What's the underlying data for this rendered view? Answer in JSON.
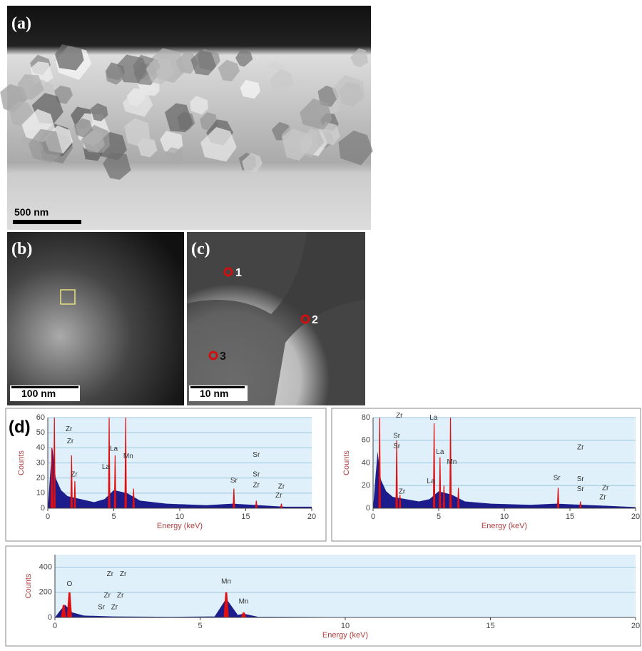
{
  "panels": {
    "a": {
      "label": "(a)",
      "scale": "500 nm"
    },
    "b": {
      "label": "(b)",
      "scale": "100 nm"
    },
    "c": {
      "label": "(c)",
      "scale": "10 nm",
      "points": [
        "1",
        "2",
        "3"
      ]
    },
    "d": {
      "label": "(d)"
    }
  },
  "chart_data": [
    {
      "type": "spectrum",
      "xlabel": "Energy (keV)",
      "ylabel": "Counts",
      "xlim": [
        0,
        20
      ],
      "xticks": [
        0,
        5,
        10,
        15,
        20
      ],
      "ylim": [
        0,
        60
      ],
      "yticks": [
        0,
        10,
        20,
        30,
        40,
        50,
        60
      ],
      "grid": true,
      "background": {
        "color": "#1c1c8c",
        "x": [
          0,
          0.2,
          0.35,
          0.6,
          1,
          1.5,
          2.5,
          3.5,
          4.3,
          5,
          6,
          7,
          9,
          12,
          14,
          16,
          18,
          20
        ],
        "values": [
          0,
          25,
          40,
          20,
          12,
          8,
          6,
          4,
          6,
          12,
          10,
          5,
          3,
          2,
          3,
          2,
          1,
          1
        ]
      },
      "peaks": {
        "color": "#e01010",
        "x": [
          0.3,
          0.5,
          1.8,
          2.05,
          4.65,
          5.1,
          5.9,
          6.5,
          14.1,
          15.8,
          17.7
        ],
        "values": [
          40,
          60,
          35,
          18,
          60,
          35,
          60,
          13,
          13,
          5,
          3
        ]
      },
      "annotations": [
        {
          "text": "Zr",
          "x": 1.6,
          "y": 51
        },
        {
          "text": "Zr",
          "x": 1.7,
          "y": 43
        },
        {
          "text": "Zr",
          "x": 2.0,
          "y": 21
        },
        {
          "text": "La",
          "x": 4.4,
          "y": 26
        },
        {
          "text": "La",
          "x": 5.0,
          "y": 38
        },
        {
          "text": "Mn",
          "x": 6.1,
          "y": 33
        },
        {
          "text": "Sr",
          "x": 14.1,
          "y": 17
        },
        {
          "text": "Sr",
          "x": 15.8,
          "y": 34
        },
        {
          "text": "Sr",
          "x": 15.8,
          "y": 21
        },
        {
          "text": "Zr",
          "x": 15.8,
          "y": 14
        },
        {
          "text": "Zr",
          "x": 17.7,
          "y": 13
        },
        {
          "text": "Zr",
          "x": 17.5,
          "y": 7
        }
      ]
    },
    {
      "type": "spectrum",
      "xlabel": "Energy (keV)",
      "ylabel": "Counts",
      "xlim": [
        0,
        20
      ],
      "xticks": [
        0,
        5,
        10,
        15,
        20
      ],
      "ylim": [
        0,
        80
      ],
      "yticks": [
        0,
        20,
        40,
        60,
        80
      ],
      "grid": true,
      "background": {
        "color": "#1c1c8c",
        "x": [
          0,
          0.2,
          0.35,
          0.6,
          1,
          1.5,
          2.5,
          3.5,
          4.3,
          5,
          6,
          7,
          9,
          12,
          14,
          16,
          18,
          20
        ],
        "values": [
          0,
          30,
          50,
          25,
          15,
          10,
          8,
          6,
          8,
          15,
          12,
          6,
          4,
          3,
          4,
          3,
          2,
          1
        ]
      },
      "peaks": {
        "color": "#e01010",
        "x": [
          0.5,
          1.8,
          2.05,
          4.65,
          5.1,
          5.4,
          5.9,
          6.5,
          14.1,
          15.8
        ],
        "values": [
          80,
          60,
          12,
          75,
          45,
          20,
          80,
          18,
          18,
          6
        ]
      },
      "annotations": [
        {
          "text": "Zr",
          "x": 2.0,
          "y": 80
        },
        {
          "text": "Sr",
          "x": 1.8,
          "y": 62
        },
        {
          "text": "Sr",
          "x": 1.8,
          "y": 53
        },
        {
          "text": "Zr",
          "x": 2.2,
          "y": 13
        },
        {
          "text": "La",
          "x": 4.6,
          "y": 78
        },
        {
          "text": "La",
          "x": 5.1,
          "y": 48
        },
        {
          "text": "La",
          "x": 4.4,
          "y": 22
        },
        {
          "text": "Mn",
          "x": 6.0,
          "y": 39
        },
        {
          "text": "Sr",
          "x": 14.0,
          "y": 25
        },
        {
          "text": "Zr",
          "x": 15.8,
          "y": 52
        },
        {
          "text": "Sr",
          "x": 15.8,
          "y": 24
        },
        {
          "text": "Sr",
          "x": 15.8,
          "y": 15
        },
        {
          "text": "Zr",
          "x": 17.7,
          "y": 16
        },
        {
          "text": "Zr",
          "x": 17.5,
          "y": 8
        }
      ]
    },
    {
      "type": "spectrum",
      "xlabel": "Energy (keV)",
      "ylabel": "Counts",
      "xlim": [
        0,
        20
      ],
      "xticks": [
        0,
        5,
        10,
        15,
        20
      ],
      "ylim": [
        0,
        500
      ],
      "yticks": [
        0,
        200,
        400
      ],
      "grid": true,
      "background": {
        "color": "#1c1c8c",
        "x": [
          0,
          0.2,
          0.35,
          0.6,
          1,
          2,
          4,
          5.5,
          5.9,
          6.3,
          6.5,
          7,
          10,
          20
        ],
        "values": [
          0,
          60,
          100,
          40,
          15,
          8,
          5,
          8,
          150,
          20,
          30,
          5,
          2,
          1
        ]
      },
      "peaks": {
        "color": "#e01010",
        "x": [
          0.3,
          0.5,
          5.9,
          6.5
        ],
        "values": [
          100,
          200,
          200,
          40
        ]
      },
      "annotations": [
        {
          "text": "O",
          "x": 0.5,
          "y": 250
        },
        {
          "text": "Zr",
          "x": 1.9,
          "y": 330
        },
        {
          "text": "Zr",
          "x": 2.35,
          "y": 330
        },
        {
          "text": "Zr",
          "x": 1.8,
          "y": 160
        },
        {
          "text": "Zr",
          "x": 2.25,
          "y": 160
        },
        {
          "text": "Sr",
          "x": 1.6,
          "y": 65
        },
        {
          "text": "Zr",
          "x": 2.05,
          "y": 65
        },
        {
          "text": "Mn",
          "x": 5.9,
          "y": 270
        },
        {
          "text": "Mn",
          "x": 6.5,
          "y": 110
        }
      ]
    }
  ]
}
